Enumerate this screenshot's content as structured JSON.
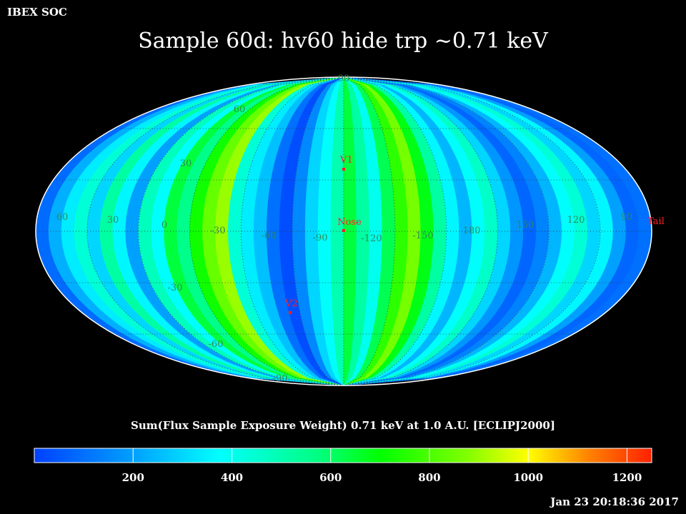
{
  "header": {
    "corner_label": "IBEX SOC",
    "title": "Sample 60d: hv60 hide trp ~0.71 keV"
  },
  "colorbar": {
    "title": "Sum(Flux Sample Exposure Weight)  0.71 keV at 1.0 A.U. [ECLIPJ2000]",
    "min": 0,
    "max": 1250,
    "tick_values": [
      200,
      400,
      600,
      800,
      1000,
      1200
    ],
    "tick_labels": [
      "200",
      "400",
      "600",
      "800",
      "1000",
      "1200"
    ]
  },
  "footer": {
    "timestamp": "Jan 23 20:18:36 2017"
  },
  "map": {
    "projection": "Aitoff/Mollweide equal-area",
    "coordinate_frame": "ECLIPJ2000",
    "longitude_labels": [
      "60",
      "30",
      "0",
      "-30",
      "-60",
      "-90",
      "-120",
      "-150",
      "180",
      "150",
      "120",
      "90"
    ],
    "latitude_labels": [
      "90",
      "60",
      "30",
      "-30",
      "-60",
      "-90"
    ],
    "markers": [
      {
        "label": "V1",
        "color": "#ff2020"
      },
      {
        "label": "Nose",
        "color": "#ff2020"
      },
      {
        "label": "V2",
        "color": "#ff2020"
      },
      {
        "label": "Tail",
        "color": "#ff2020"
      }
    ],
    "band_values": [
      90,
      230,
      340,
      440,
      300,
      520,
      360,
      200,
      480,
      380,
      640,
      560,
      720,
      840,
      900,
      440,
      340,
      260,
      100,
      30,
      150,
      300,
      380,
      500,
      640,
      520,
      400,
      620,
      760,
      860,
      680,
      520,
      360,
      240,
      380,
      460,
      300,
      180,
      80,
      140,
      240,
      380,
      440,
      300,
      360,
      200,
      80,
      100
    ],
    "label_color": "#2e8b57"
  }
}
